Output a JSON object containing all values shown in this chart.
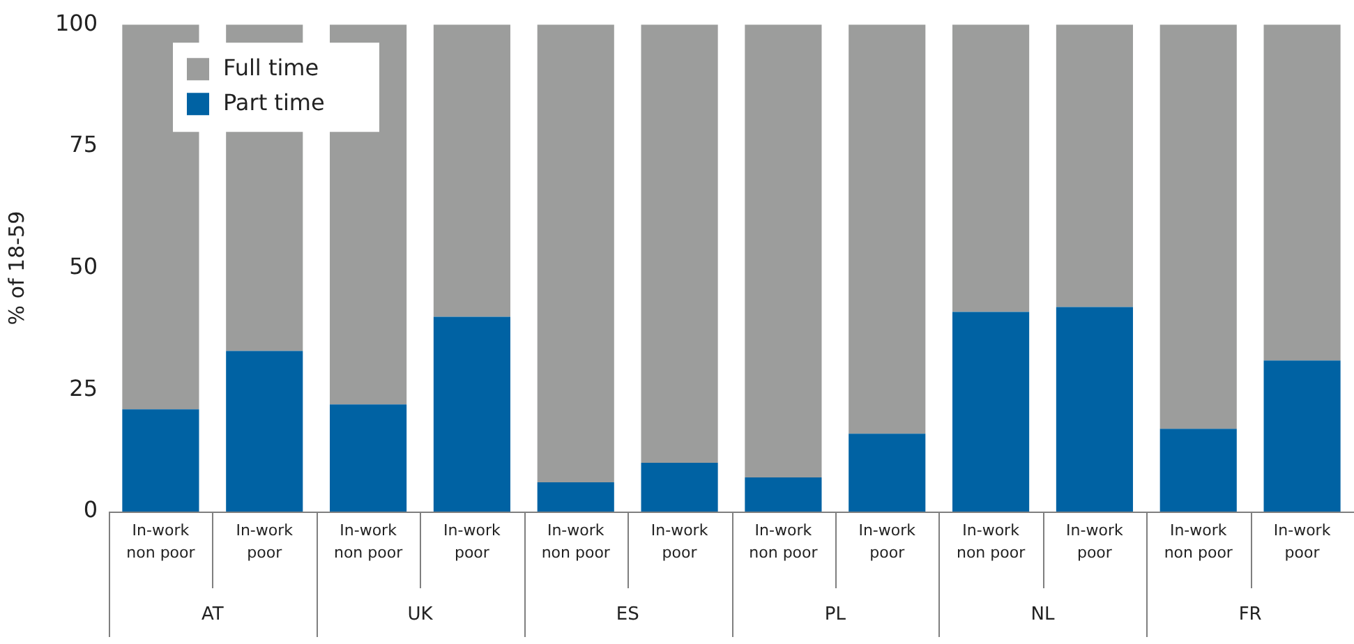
{
  "chart_data": {
    "type": "bar",
    "stacked": true,
    "ylabel": "% of 18-59",
    "categories": [
      "In-work\nnon poor",
      "In-work\npoor",
      "In-work\nnon poor",
      "In-work\npoor",
      "In-work\nnon poor",
      "In-work\npoor",
      "In-work\nnon poor",
      "In-work\npoor",
      "In-work\nnon poor",
      "In-work\npoor",
      "In-work\nnon poor",
      "In-work\npoor"
    ],
    "annotations": [
      "AT",
      "UK",
      "ES",
      "PL",
      "NL",
      "FR"
    ],
    "series": [
      {
        "name": "Part time",
        "color": "#0062a3",
        "values": [
          21,
          33,
          22,
          40,
          6,
          10,
          7,
          16,
          41,
          42,
          17,
          31
        ]
      },
      {
        "name": "Full time",
        "color": "#9c9d9c",
        "values": [
          79,
          67,
          78,
          60,
          94,
          90,
          93,
          84,
          59,
          58,
          83,
          69
        ]
      }
    ],
    "ylim": [
      0,
      100
    ],
    "yticks": [
      0,
      25,
      50,
      75,
      100
    ],
    "grid": false,
    "legend": "top left"
  }
}
